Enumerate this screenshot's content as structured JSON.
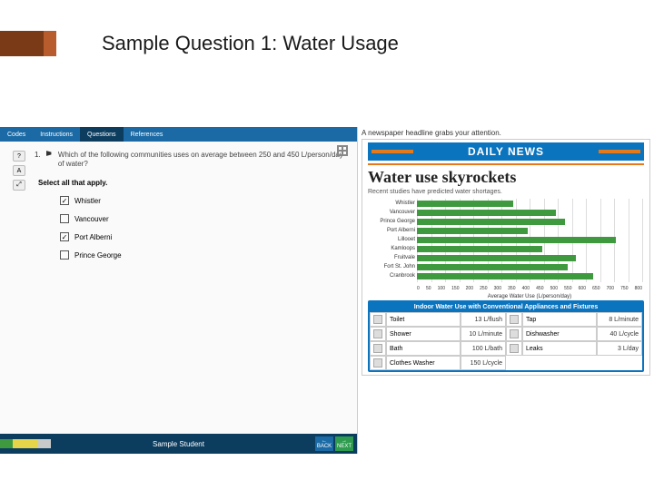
{
  "slide": {
    "title": "Sample Question 1: Water Usage"
  },
  "colors": {
    "accent_dark": "#7a3a18",
    "accent_light": "#b85c2e",
    "app_header": "#1b6aa5",
    "app_header_active": "#0c3d5f",
    "news_blue": "#0b74bf",
    "news_orange": "#e67a1a",
    "bar_green": "#3f9a3f",
    "next_green": "#2e9b4f"
  },
  "left": {
    "tabs": [
      "Codes",
      "Instructions",
      "Questions",
      "References"
    ],
    "active_tab_index": 2,
    "question_number": "1.",
    "question_text": "Which of the following communities uses on average between 250 and 450 L/person/day of water?",
    "select_instruction": "Select all that apply.",
    "options": [
      {
        "label": "Whistler",
        "checked": true
      },
      {
        "label": "Vancouver",
        "checked": false
      },
      {
        "label": "Port Alberni",
        "checked": true
      },
      {
        "label": "Prince George",
        "checked": false
      }
    ],
    "footer_user": "Sample Student",
    "back_label": "BACK",
    "next_label": "NEXT",
    "block_colors": [
      "#3f9a3f",
      "#e6d54a",
      "#e6d54a",
      "#c9c9c9"
    ]
  },
  "right": {
    "note": "A newspaper headline grabs your attention.",
    "masthead": "DAILY NEWS",
    "headline": "Water use skyrockets",
    "subhead": "Recent studies have predicted water shortages.",
    "chart": {
      "type": "bar",
      "orientation": "horizontal",
      "bar_color": "#3f9a3f",
      "grid_color": "#dddddd",
      "xmin": 0,
      "xmax": 800,
      "xtick_step": 50,
      "xlabel": "Average Water Use (L/person/day)",
      "categories": [
        "Cranbrook",
        "Fort St. John",
        "Fruitvale",
        "Kamloops",
        "Lillooet",
        "Port Alberni",
        "Prince George",
        "Vancouver",
        "Whistler"
      ],
      "values": [
        620,
        530,
        560,
        440,
        700,
        390,
        520,
        490,
        340
      ],
      "label_fontsize": 6
    },
    "usage": {
      "title": "Indoor Water Use with Conventional Appliances and Fixtures",
      "rows": [
        {
          "left_name": "Toilet",
          "left_val": "13 L/flush",
          "right_name": "Tap",
          "right_val": "8 L/minute"
        },
        {
          "left_name": "Shower",
          "left_val": "10 L/minute",
          "right_name": "Dishwasher",
          "right_val": "40 L/cycle"
        },
        {
          "left_name": "Bath",
          "left_val": "100 L/bath",
          "right_name": "Leaks",
          "right_val": "3 L/day"
        },
        {
          "left_name": "Clothes Washer",
          "left_val": "150 L/cycle",
          "right_name": "",
          "right_val": ""
        }
      ]
    }
  }
}
